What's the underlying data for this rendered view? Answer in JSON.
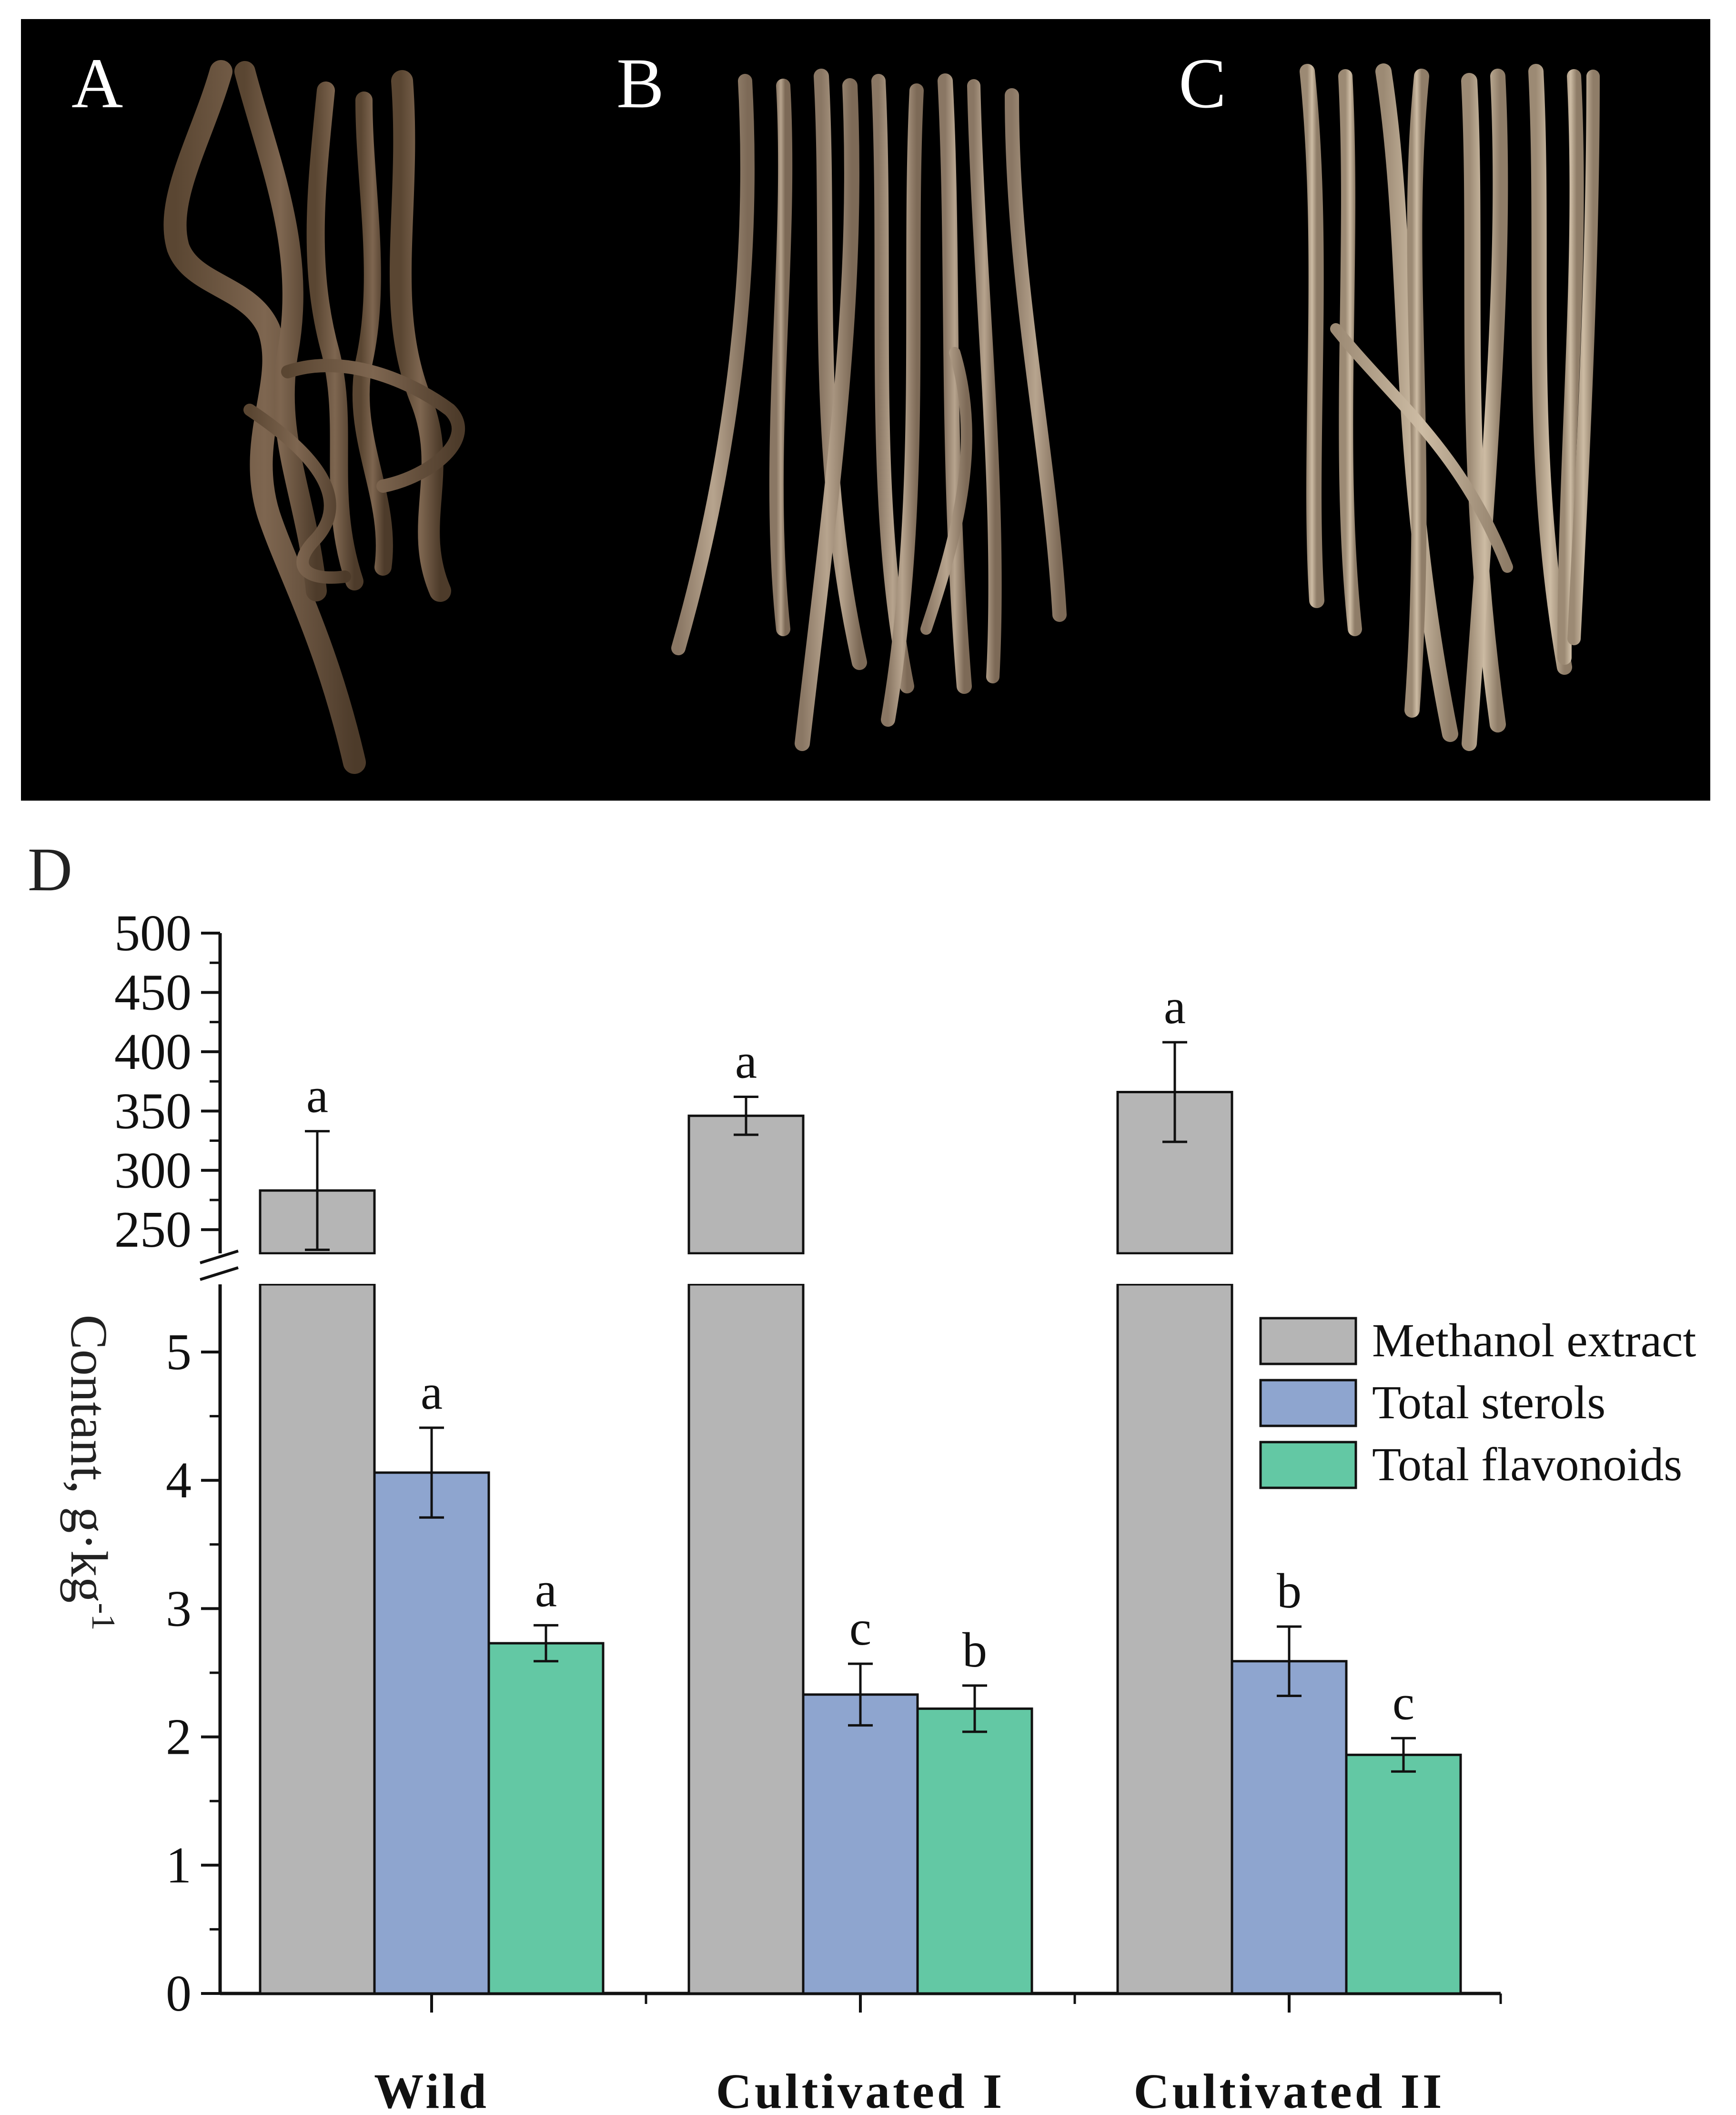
{
  "panels": {
    "a_label": "A",
    "b_label": "B",
    "c_label": "C",
    "d_label": "D"
  },
  "chart_data": {
    "type": "bar",
    "categories": [
      "Wild",
      "Cultivated I",
      "Cultivated II"
    ],
    "ylabel": "Contant, g·kg",
    "ylabel_superscript": "-1",
    "axis_break": true,
    "lower_ylim": [
      0,
      5.5
    ],
    "upper_ylim": [
      230,
      500
    ],
    "lower_ticks": [
      0,
      1,
      2,
      3,
      4,
      5
    ],
    "upper_ticks": [
      250,
      300,
      350,
      400,
      450,
      500
    ],
    "legend_position": "right",
    "series": [
      {
        "name": "Methanol extract",
        "color": "#b5b5b5",
        "values": [
          283,
          346,
          366
        ],
        "errors": [
          50,
          16,
          42
        ],
        "letters": [
          "a",
          "a",
          "a"
        ]
      },
      {
        "name": "Total sterols",
        "color": "#8ea5cf",
        "values": [
          4.06,
          2.33,
          2.59
        ],
        "errors": [
          0.35,
          0.24,
          0.27
        ],
        "letters": [
          "a",
          "c",
          "b"
        ]
      },
      {
        "name": "Total flavonoids",
        "color": "#63c8a4",
        "values": [
          2.73,
          2.22,
          1.86
        ],
        "errors": [
          0.14,
          0.18,
          0.13
        ],
        "letters": [
          "a",
          "b",
          "c"
        ]
      }
    ]
  }
}
